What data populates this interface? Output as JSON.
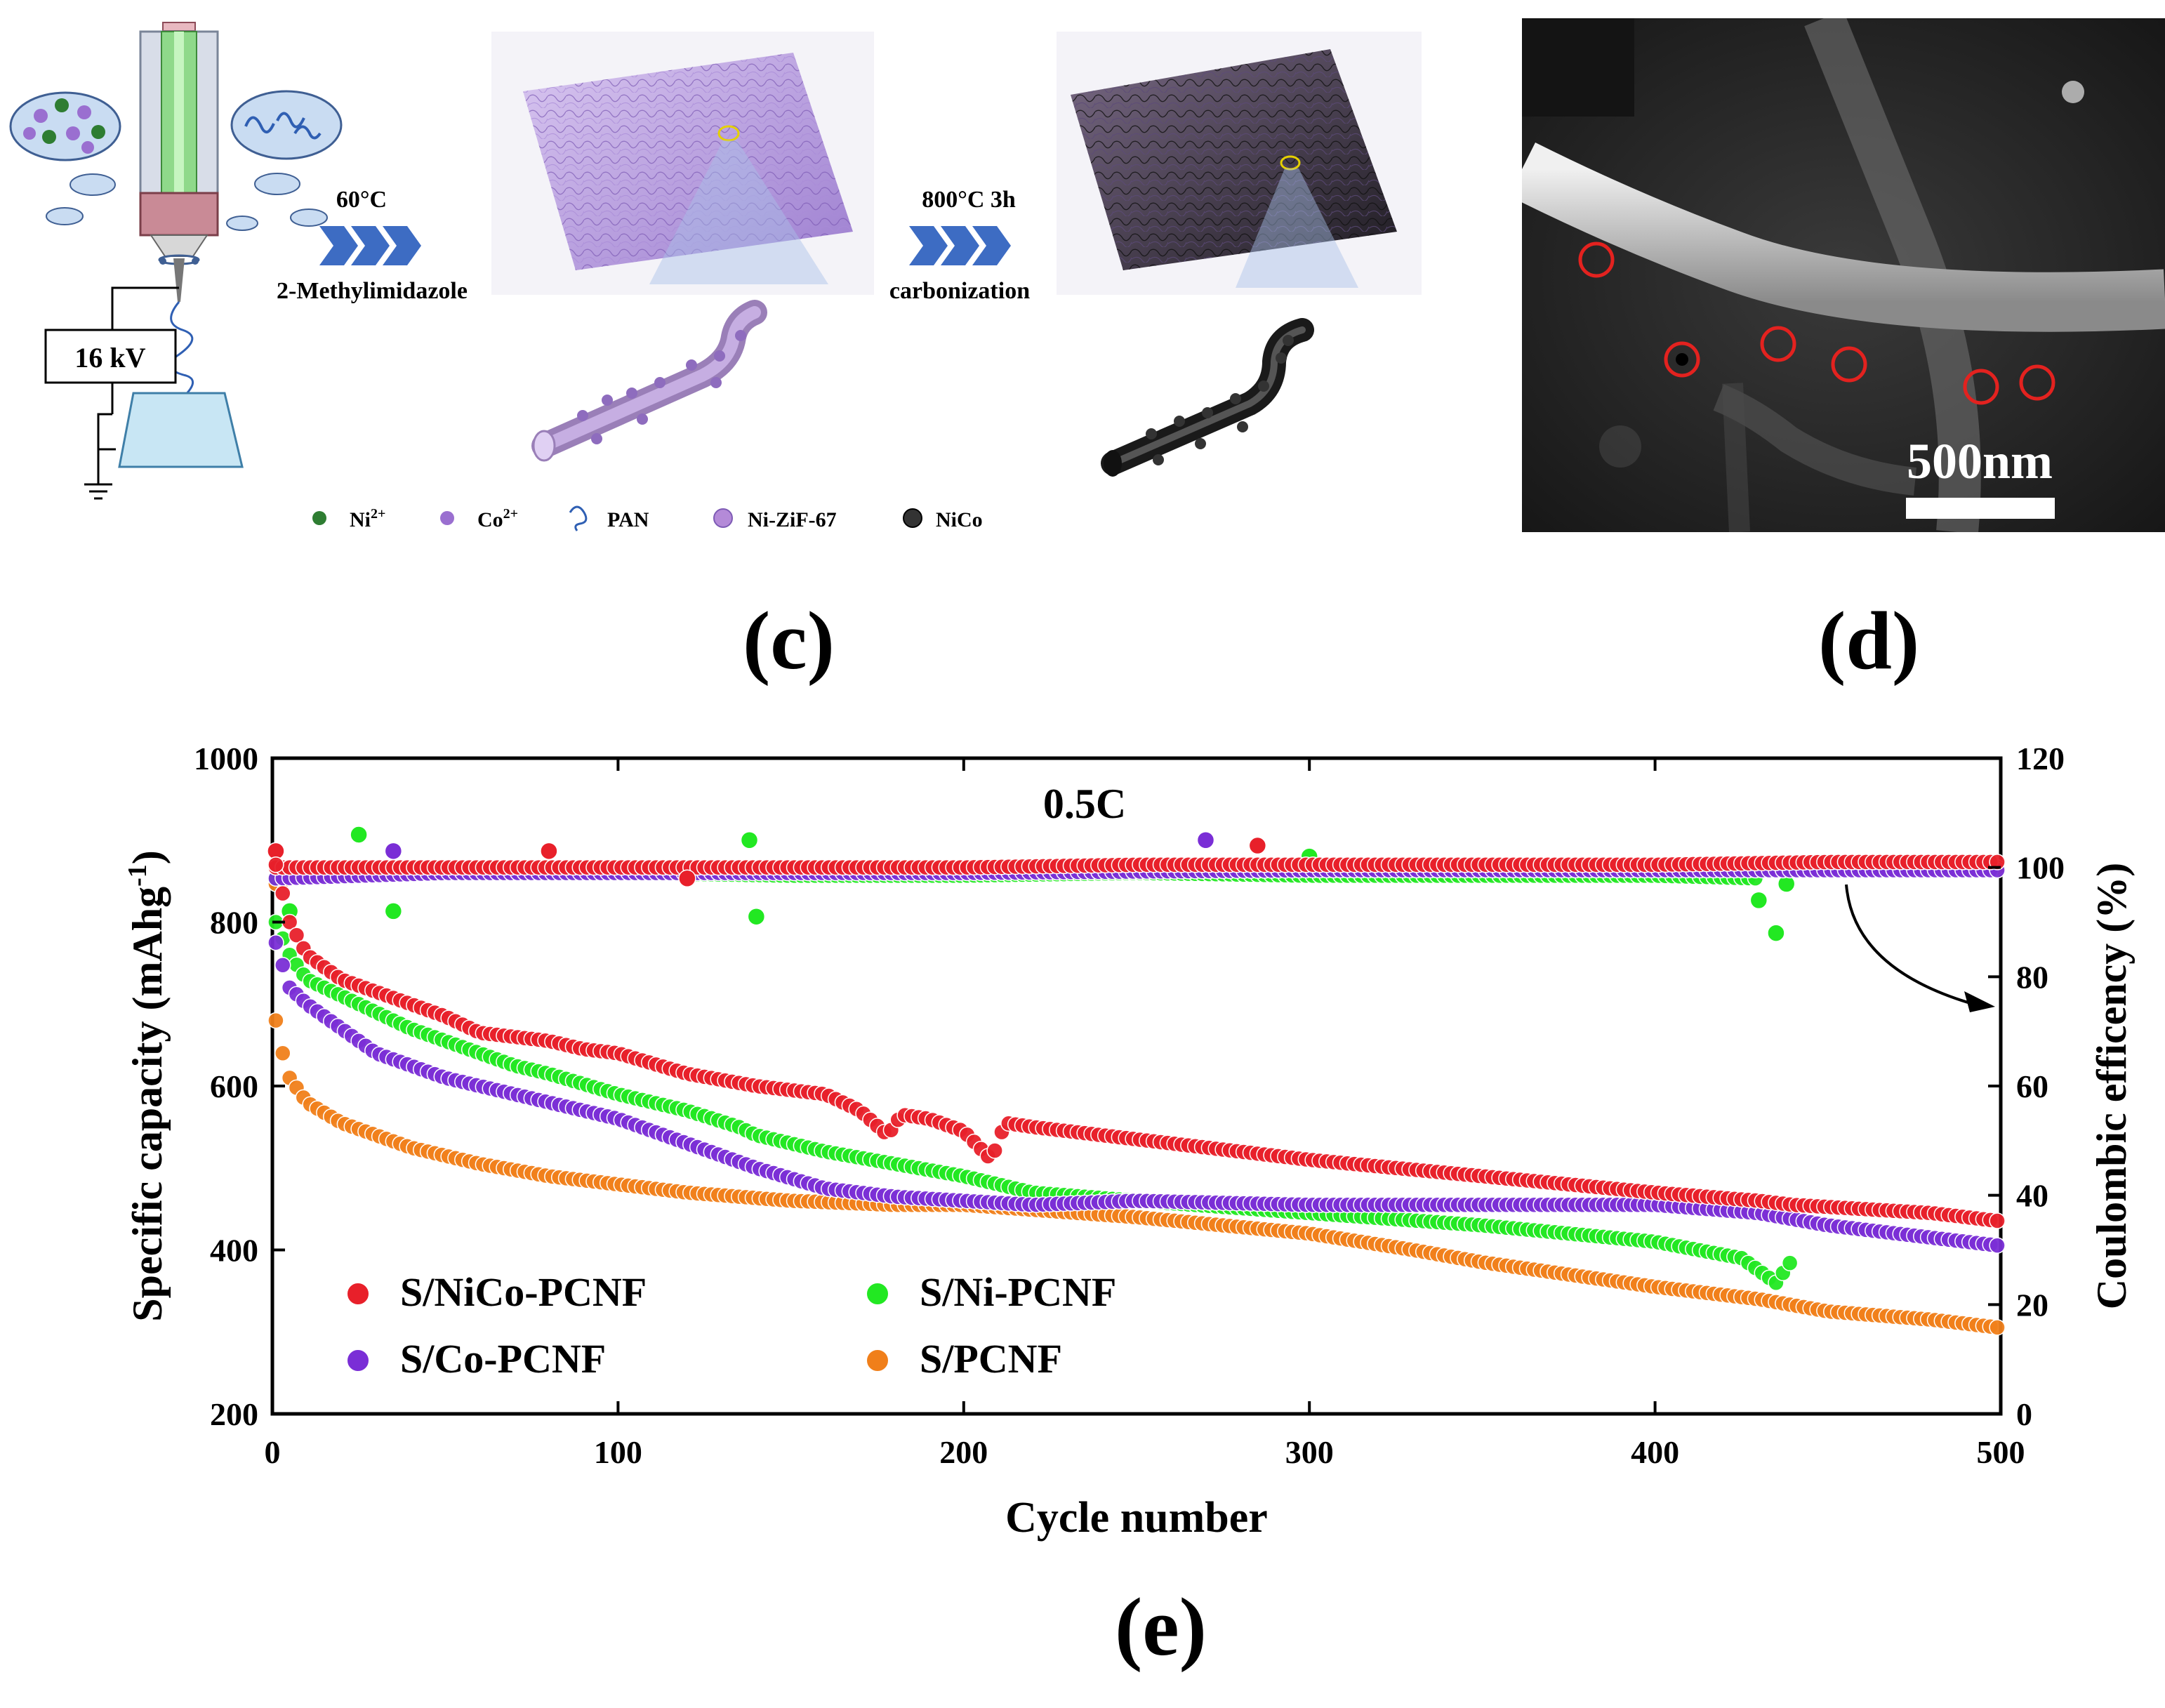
{
  "schematic": {
    "voltage_label": "16 kV",
    "step1_temp": "60°C",
    "step1_reagent": "2-Methylimidazole",
    "step2_temp": "800°C 3h",
    "step2_process": "carbonization",
    "legend": [
      {
        "label": "Ni",
        "sup": "2+",
        "color": "#2e7d32"
      },
      {
        "label": "Co",
        "sup": "2+",
        "color": "#9a6fd0"
      },
      {
        "label": "PAN",
        "sup": "",
        "color": "#2f5fb3"
      },
      {
        "label": "Ni-ZiF-67",
        "sup": "",
        "color": "#b48ad8"
      },
      {
        "label": "NiCo",
        "sup": "",
        "color": "#333333"
      }
    ]
  },
  "sem": {
    "scale_bar": "500nm"
  },
  "panel_labels": {
    "c": "(c)",
    "d": "(d)",
    "e": "(e)"
  },
  "chart_data": {
    "type": "scatter",
    "annotation": "0.5C",
    "xlabel": "Cycle number",
    "ylabel": "Specific capacity (mAhg",
    "ylabel_sup": "-1",
    "ylabel_end": ")",
    "y2label": "Coulombic efficency (%)",
    "xlim": [
      0,
      500
    ],
    "ylim": [
      200,
      1000
    ],
    "y2lim": [
      0,
      120
    ],
    "x_ticks": [
      0,
      100,
      200,
      300,
      400,
      500
    ],
    "y_ticks": [
      200,
      400,
      600,
      800,
      1000
    ],
    "y2_ticks": [
      0,
      20,
      40,
      60,
      80,
      100,
      120
    ],
    "series": [
      {
        "name": "S/NiCo-PCNF",
        "color": "#e8202a",
        "x": [
          1,
          5,
          10,
          20,
          30,
          40,
          50,
          60,
          70,
          80,
          90,
          100,
          120,
          140,
          160,
          170,
          178,
          182,
          190,
          200,
          208,
          212,
          220,
          250,
          300,
          350,
          400,
          430,
          440,
          460,
          480,
          500
        ],
        "y": [
          870,
          800,
          760,
          730,
          715,
          700,
          685,
          665,
          660,
          655,
          645,
          640,
          615,
          600,
          590,
          570,
          540,
          565,
          560,
          545,
          510,
          555,
          550,
          535,
          510,
          490,
          470,
          460,
          455,
          450,
          445,
          435
        ],
        "ce_x": [
          1,
          10,
          50,
          100,
          150,
          200,
          250,
          300,
          350,
          400,
          450,
          500
        ],
        "ce_y": [
          100,
          100,
          100,
          100,
          100,
          100,
          100.5,
          100.5,
          100.5,
          100.5,
          101,
          101
        ],
        "ce_outliers_x": [
          1,
          80,
          120,
          285
        ],
        "ce_outliers_y": [
          103,
          103,
          98,
          104
        ]
      },
      {
        "name": "S/Ni-PCNF",
        "color": "#22e822",
        "x": [
          1,
          5,
          10,
          20,
          30,
          40,
          50,
          60,
          70,
          80,
          100,
          120,
          135,
          140,
          150,
          160,
          180,
          200,
          220,
          250,
          300,
          350,
          400,
          425,
          435,
          440
        ],
        "y": [
          800,
          760,
          730,
          710,
          690,
          670,
          655,
          640,
          625,
          615,
          590,
          570,
          550,
          540,
          530,
          520,
          505,
          490,
          470,
          460,
          445,
          430,
          410,
          390,
          360,
          390
        ],
        "ce_x": [
          1,
          10,
          50,
          100,
          150,
          200,
          250,
          300,
          350,
          400,
          430
        ],
        "ce_y": [
          98,
          99,
          99,
          99,
          98.5,
          98.5,
          99,
          98.5,
          98.5,
          98.5,
          98
        ],
        "ce_outliers_x": [
          5,
          25,
          35,
          138,
          140,
          300,
          430,
          435,
          438
        ],
        "ce_outliers_y": [
          92,
          106,
          92,
          105,
          91,
          102,
          94,
          88,
          97
        ]
      },
      {
        "name": "S/Co-PCNF",
        "color": "#7a2ed6",
        "x": [
          1,
          5,
          10,
          20,
          30,
          40,
          50,
          60,
          70,
          80,
          100,
          120,
          140,
          160,
          180,
          200,
          220,
          250,
          300,
          350,
          400,
          430,
          450,
          480,
          500
        ],
        "y": [
          775,
          720,
          700,
          670,
          640,
          625,
          610,
          600,
          590,
          580,
          560,
          530,
          500,
          475,
          465,
          460,
          455,
          460,
          455,
          455,
          455,
          445,
          430,
          415,
          405
        ],
        "ce_x": [
          1,
          50,
          100,
          200,
          300,
          400,
          500
        ],
        "ce_y": [
          98,
          99,
          99,
          99,
          99.5,
          99.5,
          99.5
        ],
        "ce_outliers_x": [
          35,
          80,
          270
        ],
        "ce_outliers_y": [
          103,
          103,
          105
        ]
      },
      {
        "name": "S/PCNF",
        "color": "#f07f1a",
        "x": [
          1,
          3,
          5,
          10,
          20,
          30,
          40,
          60,
          80,
          100,
          120,
          150,
          180,
          200,
          250,
          300,
          330,
          350,
          400,
          430,
          450,
          480,
          500
        ],
        "y": [
          680,
          640,
          610,
          580,
          555,
          540,
          525,
          505,
          490,
          480,
          470,
          460,
          455,
          455,
          440,
          420,
          400,
          385,
          355,
          340,
          325,
          315,
          305
        ],
        "ce_x": [
          1,
          10,
          50,
          100,
          150,
          200,
          250,
          300,
          350,
          400,
          450,
          500
        ],
        "ce_y": [
          97,
          99.5,
          99.8,
          100,
          100,
          100,
          100,
          100,
          100,
          100,
          100,
          100
        ],
        "ce_outliers_x": [],
        "ce_outliers_y": []
      }
    ]
  }
}
